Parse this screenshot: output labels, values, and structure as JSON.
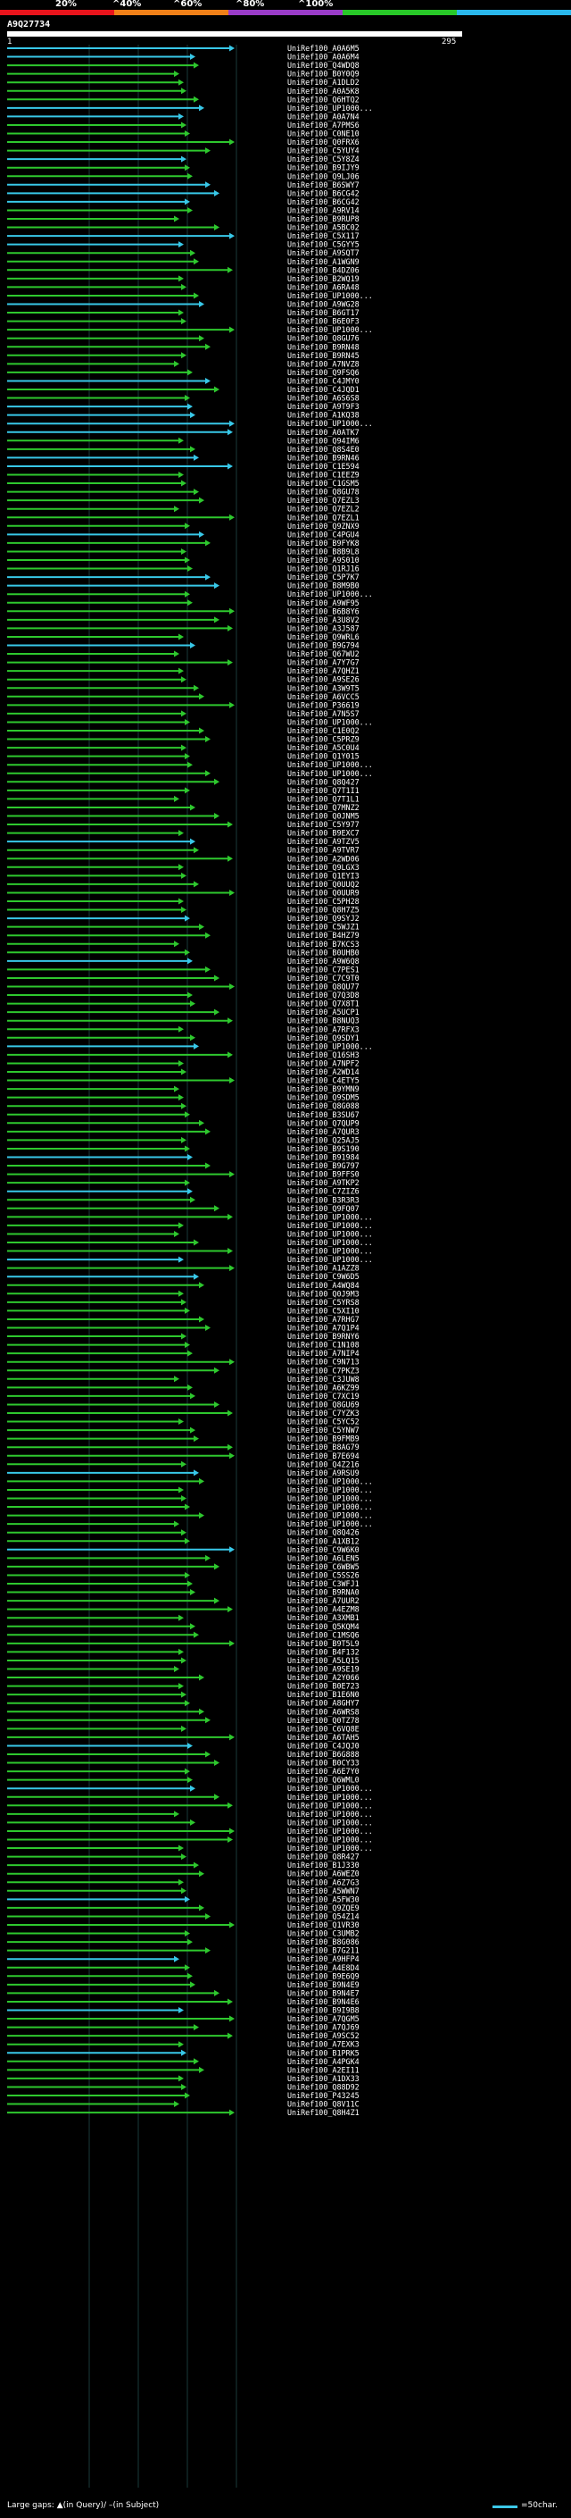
{
  "legend": {
    "labels": [
      "20%",
      "^40%",
      "^60%",
      "^80%",
      "^100%"
    ],
    "colors": [
      "#e8141c",
      "#f08018",
      "#9a3cc8",
      "#28c828",
      "#2ab8ec"
    ]
  },
  "query": {
    "id": "A9Q27734",
    "start": "1",
    "end": "295"
  },
  "hits": [
    {
      "label": "UniRef100_A0A6M5",
      "color": "#38c8e8"
    },
    {
      "label": "UniRef100_A0A6M4",
      "color": "#38c8e8"
    },
    {
      "label": "UniRef100_Q4WDQ8",
      "color": "#2ec82e"
    },
    {
      "label": "UniRef100_B0Y0Q9",
      "color": "#2ec82e"
    },
    {
      "label": "UniRef100_A1DLD2",
      "color": "#2ec82e"
    },
    {
      "label": "UniRef100_A0A5K8",
      "color": "#2ec82e"
    },
    {
      "label": "UniRef100_Q6HTQ2",
      "color": "#2ec82e"
    },
    {
      "label": "UniRef100_UP1000...",
      "color": "#38c8e8"
    },
    {
      "label": "UniRef100_A0A7N4",
      "color": "#38c8e8"
    },
    {
      "label": "UniRef100_A7PMS6",
      "color": "#2ec82e"
    },
    {
      "label": "UniRef100_C0NE10",
      "color": "#2ec82e"
    },
    {
      "label": "UniRef100_Q0FRX6",
      "color": "#2ec82e"
    },
    {
      "label": "UniRef100_C5YUY4",
      "color": "#2ec82e"
    },
    {
      "label": "UniRef100_C5Y8Z4",
      "color": "#38c8e8"
    },
    {
      "label": "UniRef100_B9IJY9",
      "color": "#2ec82e"
    },
    {
      "label": "UniRef100_Q9LJ06",
      "color": "#2ec82e"
    },
    {
      "label": "UniRef100_B6SWY7",
      "color": "#38c8e8"
    },
    {
      "label": "UniRef100_B6CG42",
      "color": "#38c8e8"
    },
    {
      "label": "UniRef100_B6CG42",
      "color": "#38c8e8"
    },
    {
      "label": "UniRef100_A9RV14",
      "color": "#2ec82e"
    },
    {
      "label": "UniRef100_B9RUP8",
      "color": "#2ec82e"
    },
    {
      "label": "UniRef100_A5BC02",
      "color": "#2ec82e"
    },
    {
      "label": "UniRef100_C5X117",
      "color": "#38c8e8"
    },
    {
      "label": "UniRef100_C5GYY5",
      "color": "#38c8e8"
    },
    {
      "label": "UniRef100_A9SQT7",
      "color": "#2ec82e"
    },
    {
      "label": "UniRef100_A1WGN9",
      "color": "#2ec82e"
    },
    {
      "label": "UniRef100_B4DZ06",
      "color": "#2ec82e"
    },
    {
      "label": "UniRef100_B2WQ19",
      "color": "#2ec82e"
    },
    {
      "label": "UniRef100_A6RA48",
      "color": "#2ec82e"
    },
    {
      "label": "UniRef100_UP1000...",
      "color": "#2ec82e"
    },
    {
      "label": "UniRef100_A9WG28",
      "color": "#38c8e8"
    },
    {
      "label": "UniRef100_B6GT17",
      "color": "#2ec82e"
    },
    {
      "label": "UniRef100_B6E0F3",
      "color": "#2ec82e"
    },
    {
      "label": "UniRef100_UP1000...",
      "color": "#2ec82e"
    },
    {
      "label": "UniRef100_Q8GU76",
      "color": "#2ec82e"
    },
    {
      "label": "UniRef100_B9RN48",
      "color": "#2ec82e"
    },
    {
      "label": "UniRef100_B9RN45",
      "color": "#2ec82e"
    },
    {
      "label": "UniRef100_A7NVZ8",
      "color": "#2ec82e"
    },
    {
      "label": "UniRef100_Q9FSQ6",
      "color": "#2ec82e"
    },
    {
      "label": "UniRef100_C4JMY0",
      "color": "#38c8e8"
    },
    {
      "label": "UniRef100_C4JQD1",
      "color": "#2ec82e"
    },
    {
      "label": "UniRef100_A6S6S8",
      "color": "#2ec82e"
    },
    {
      "label": "UniRef100_A9T9F3",
      "color": "#38c8e8"
    },
    {
      "label": "UniRef100_A1KQ38",
      "color": "#38c8e8"
    },
    {
      "label": "UniRef100_UP1000...",
      "color": "#38c8e8"
    },
    {
      "label": "UniRef100_A0ATK7",
      "color": "#38c8e8"
    },
    {
      "label": "UniRef100_Q94IM6",
      "color": "#2ec82e"
    },
    {
      "label": "UniRef100_Q8S4E0",
      "color": "#2ec82e"
    },
    {
      "label": "UniRef100_B9RN46",
      "color": "#38c8e8"
    },
    {
      "label": "UniRef100_C1E594",
      "color": "#38c8e8"
    },
    {
      "label": "UniRef100_C1EEZ9",
      "color": "#2ec82e"
    },
    {
      "label": "UniRef100_C1GSM5",
      "color": "#2ec82e"
    },
    {
      "label": "UniRef100_Q8GU78",
      "color": "#2ec82e"
    },
    {
      "label": "UniRef100_Q7EZL3",
      "color": "#2ec82e"
    },
    {
      "label": "UniRef100_Q7EZL2",
      "color": "#2ec82e"
    },
    {
      "label": "UniRef100_Q7EZL1",
      "color": "#2ec82e"
    },
    {
      "label": "UniRef100_Q9ZNX9",
      "color": "#2ec82e"
    },
    {
      "label": "UniRef100_C4PGU4",
      "color": "#38c8e8"
    },
    {
      "label": "UniRef100_B9FYK8",
      "color": "#2ec82e"
    },
    {
      "label": "UniRef100_B8B9L8",
      "color": "#2ec82e"
    },
    {
      "label": "UniRef100_A9S010",
      "color": "#2ec82e"
    },
    {
      "label": "UniRef100_Q1RJ16",
      "color": "#2ec82e"
    },
    {
      "label": "UniRef100_C5P7K7",
      "color": "#38c8e8"
    },
    {
      "label": "UniRef100_B8M9B0",
      "color": "#38c8e8"
    },
    {
      "label": "UniRef100_UP1000...",
      "color": "#2ec82e"
    },
    {
      "label": "UniRef100_A9WF95",
      "color": "#2ec82e"
    },
    {
      "label": "UniRef100_B6B8Y6",
      "color": "#2ec82e"
    },
    {
      "label": "UniRef100_A3U8V2",
      "color": "#2ec82e"
    },
    {
      "label": "UniRef100_A3J587",
      "color": "#2ec82e"
    },
    {
      "label": "UniRef100_Q9WRL6",
      "color": "#2ec82e"
    },
    {
      "label": "UniRef100_B9G794",
      "color": "#38c8e8"
    },
    {
      "label": "UniRef100_Q67WU2",
      "color": "#2ec82e"
    },
    {
      "label": "UniRef100_A7Y7G7",
      "color": "#2ec82e"
    },
    {
      "label": "UniRef100_A7QHZ1",
      "color": "#2ec82e"
    },
    {
      "label": "UniRef100_A9SE26",
      "color": "#2ec82e"
    },
    {
      "label": "UniRef100_A3W9T5",
      "color": "#2ec82e"
    },
    {
      "label": "UniRef100_A6VCC5",
      "color": "#2ec82e"
    },
    {
      "label": "UniRef100_P36619",
      "color": "#2ec82e"
    },
    {
      "label": "UniRef100_A7N5S7",
      "color": "#2ec82e"
    },
    {
      "label": "UniRef100_UP1000...",
      "color": "#2ec82e"
    },
    {
      "label": "UniRef100_C1E0Q2",
      "color": "#2ec82e"
    },
    {
      "label": "UniRef100_C5PRZ9",
      "color": "#2ec82e"
    },
    {
      "label": "UniRef100_A5C0U4",
      "color": "#2ec82e"
    },
    {
      "label": "UniRef100_Q1Y015",
      "color": "#2ec82e"
    },
    {
      "label": "UniRef100_UP1000...",
      "color": "#2ec82e"
    },
    {
      "label": "UniRef100_UP1000...",
      "color": "#2ec82e"
    },
    {
      "label": "UniRef100_Q8Q427",
      "color": "#2ec82e"
    },
    {
      "label": "UniRef100_Q7T1I1",
      "color": "#2ec82e"
    },
    {
      "label": "UniRef100_Q7T1L1",
      "color": "#2ec82e"
    },
    {
      "label": "UniRef100_Q7MNZ2",
      "color": "#2ec82e"
    },
    {
      "label": "UniRef100_Q0JNM5",
      "color": "#2ec82e"
    },
    {
      "label": "UniRef100_C5Y977",
      "color": "#2ec82e"
    },
    {
      "label": "UniRef100_B9EXC7",
      "color": "#2ec82e"
    },
    {
      "label": "UniRef100_A9TZV5",
      "color": "#38c8e8"
    },
    {
      "label": "UniRef100_A9TVR7",
      "color": "#2ec82e"
    },
    {
      "label": "UniRef100_A2WD06",
      "color": "#2ec82e"
    },
    {
      "label": "UniRef100_Q9LGX3",
      "color": "#2ec82e"
    },
    {
      "label": "UniRef100_Q1EYI3",
      "color": "#2ec82e"
    },
    {
      "label": "UniRef100_Q0UUQ2",
      "color": "#2ec82e"
    },
    {
      "label": "UniRef100_Q0UUR9",
      "color": "#2ec82e"
    },
    {
      "label": "UniRef100_C5PH28",
      "color": "#2ec82e"
    },
    {
      "label": "UniRef100_Q8H7Z5",
      "color": "#2ec82e"
    },
    {
      "label": "UniRef100_Q9SYJ2",
      "color": "#38c8e8"
    },
    {
      "label": "UniRef100_C5WJZ1",
      "color": "#2ec82e"
    },
    {
      "label": "UniRef100_B4HZ79",
      "color": "#2ec82e"
    },
    {
      "label": "UniRef100_B7KCS3",
      "color": "#2ec82e"
    },
    {
      "label": "UniRef100_B0UHB0",
      "color": "#2ec82e"
    },
    {
      "label": "UniRef100_A9W6Q8",
      "color": "#38c8e8"
    },
    {
      "label": "UniRef100_C7PES1",
      "color": "#2ec82e"
    },
    {
      "label": "UniRef100_C7C9T0",
      "color": "#2ec82e"
    },
    {
      "label": "UniRef100_Q8QU77",
      "color": "#2ec82e"
    },
    {
      "label": "UniRef100_Q7Q3D8",
      "color": "#2ec82e"
    },
    {
      "label": "UniRef100_Q7X8T1",
      "color": "#2ec82e"
    },
    {
      "label": "UniRef100_A5UCP1",
      "color": "#2ec82e"
    },
    {
      "label": "UniRef100_B8NUQ3",
      "color": "#2ec82e"
    },
    {
      "label": "UniRef100_A7RFX3",
      "color": "#2ec82e"
    },
    {
      "label": "UniRef100_Q9SDY1",
      "color": "#2ec82e"
    },
    {
      "label": "UniRef100_UP1000...",
      "color": "#38c8e8"
    },
    {
      "label": "UniRef100_Q16SH3",
      "color": "#2ec82e"
    },
    {
      "label": "UniRef100_A7NPF2",
      "color": "#2ec82e"
    },
    {
      "label": "UniRef100_A2WD14",
      "color": "#2ec82e"
    },
    {
      "label": "UniRef100_C4ETY5",
      "color": "#2ec82e"
    },
    {
      "label": "UniRef100_B9YMN9",
      "color": "#2ec82e"
    },
    {
      "label": "UniRef100_Q9SDM5",
      "color": "#2ec82e"
    },
    {
      "label": "UniRef100_Q8G088",
      "color": "#2ec82e"
    },
    {
      "label": "UniRef100_B3SU67",
      "color": "#2ec82e"
    },
    {
      "label": "UniRef100_Q7QUP9",
      "color": "#2ec82e"
    },
    {
      "label": "UniRef100_A7QUR3",
      "color": "#2ec82e"
    },
    {
      "label": "UniRef100_Q25AJ5",
      "color": "#2ec82e"
    },
    {
      "label": "UniRef100_B9S190",
      "color": "#2ec82e"
    },
    {
      "label": "UniRef100_B91984",
      "color": "#38c8e8"
    },
    {
      "label": "UniRef100_B9G797",
      "color": "#2ec82e"
    },
    {
      "label": "UniRef100_B9FFS0",
      "color": "#2ec82e"
    },
    {
      "label": "UniRef100_A9TKP2",
      "color": "#2ec82e"
    },
    {
      "label": "UniRef100_C7ZIZ6",
      "color": "#38c8e8"
    },
    {
      "label": "UniRef100_B3R3R3",
      "color": "#2ec82e"
    },
    {
      "label": "UniRef100_Q9FQ07",
      "color": "#2ec82e"
    },
    {
      "label": "UniRef100_UP1000...",
      "color": "#2ec82e"
    },
    {
      "label": "UniRef100_UP1000...",
      "color": "#2ec82e"
    },
    {
      "label": "UniRef100_UP1000...",
      "color": "#2ec82e"
    },
    {
      "label": "UniRef100_UP1000...",
      "color": "#2ec82e"
    },
    {
      "label": "UniRef100_UP1000...",
      "color": "#2ec82e"
    },
    {
      "label": "UniRef100_UP1000...",
      "color": "#38c8e8"
    },
    {
      "label": "UniRef100_A1AZZ8",
      "color": "#2ec82e"
    },
    {
      "label": "UniRef100_C9W6D5",
      "color": "#38c8e8"
    },
    {
      "label": "UniRef100_A4WQ84",
      "color": "#2ec82e"
    },
    {
      "label": "UniRef100_Q0J9M3",
      "color": "#2ec82e"
    },
    {
      "label": "UniRef100_C5YRS8",
      "color": "#2ec82e"
    },
    {
      "label": "UniRef100_C5XI10",
      "color": "#2ec82e"
    },
    {
      "label": "UniRef100_A7RHG7",
      "color": "#2ec82e"
    },
    {
      "label": "UniRef100_A7Q1P4",
      "color": "#2ec82e"
    },
    {
      "label": "UniRef100_B9RNY6",
      "color": "#2ec82e"
    },
    {
      "label": "UniRef100_C1N108",
      "color": "#2ec82e"
    },
    {
      "label": "UniRef100_A7NIP4",
      "color": "#2ec82e"
    },
    {
      "label": "UniRef100_C9N713",
      "color": "#2ec82e"
    },
    {
      "label": "UniRef100_C7PKZ3",
      "color": "#2ec82e"
    },
    {
      "label": "UniRef100_C3JUW8",
      "color": "#2ec82e"
    },
    {
      "label": "UniRef100_A6KZ99",
      "color": "#2ec82e"
    },
    {
      "label": "UniRef100_C7XC19",
      "color": "#2ec82e"
    },
    {
      "label": "UniRef100_Q8GU69",
      "color": "#2ec82e"
    },
    {
      "label": "UniRef100_C7YZK3",
      "color": "#2ec82e"
    },
    {
      "label": "UniRef100_C5YC52",
      "color": "#2ec82e"
    },
    {
      "label": "UniRef100_C5YNW7",
      "color": "#2ec82e"
    },
    {
      "label": "UniRef100_B9FMB9",
      "color": "#2ec82e"
    },
    {
      "label": "UniRef100_B8AG79",
      "color": "#2ec82e"
    },
    {
      "label": "UniRef100_B7E694",
      "color": "#2ec82e"
    },
    {
      "label": "UniRef100_Q4Z216",
      "color": "#2ec82e"
    },
    {
      "label": "UniRef100_A9RSU9",
      "color": "#38c8e8"
    },
    {
      "label": "UniRef100_UP1000...",
      "color": "#2ec82e"
    },
    {
      "label": "UniRef100_UP1000...",
      "color": "#2ec82e"
    },
    {
      "label": "UniRef100_UP1000...",
      "color": "#2ec82e"
    },
    {
      "label": "UniRef100_UP1000...",
      "color": "#2ec82e"
    },
    {
      "label": "UniRef100_UP1000...",
      "color": "#2ec82e"
    },
    {
      "label": "UniRef100_UP1000...",
      "color": "#2ec82e"
    },
    {
      "label": "UniRef100_Q8Q426",
      "color": "#2ec82e"
    },
    {
      "label": "UniRef100_A1XB12",
      "color": "#2ec82e"
    },
    {
      "label": "UniRef100_C9W6K0",
      "color": "#38c8e8"
    },
    {
      "label": "UniRef100_A6LEN5",
      "color": "#2ec82e"
    },
    {
      "label": "UniRef100_C6WBW5",
      "color": "#2ec82e"
    },
    {
      "label": "UniRef100_C5SS26",
      "color": "#2ec82e"
    },
    {
      "label": "UniRef100_C3WFJ1",
      "color": "#2ec82e"
    },
    {
      "label": "UniRef100_B9RNA0",
      "color": "#2ec82e"
    },
    {
      "label": "UniRef100_A7UUR2",
      "color": "#2ec82e"
    },
    {
      "label": "UniRef100_A4EZM8",
      "color": "#2ec82e"
    },
    {
      "label": "UniRef100_A3XMB1",
      "color": "#2ec82e"
    },
    {
      "label": "UniRef100_Q5KQM4",
      "color": "#2ec82e"
    },
    {
      "label": "UniRef100_C1MSQ6",
      "color": "#2ec82e"
    },
    {
      "label": "UniRef100_B9T5L9",
      "color": "#2ec82e"
    },
    {
      "label": "UniRef100_B4F132",
      "color": "#2ec82e"
    },
    {
      "label": "UniRef100_A5LQ15",
      "color": "#2ec82e"
    },
    {
      "label": "UniRef100_A9SE19",
      "color": "#2ec82e"
    },
    {
      "label": "UniRef100_A2Y066",
      "color": "#2ec82e"
    },
    {
      "label": "UniRef100_B0E723",
      "color": "#2ec82e"
    },
    {
      "label": "UniRef100_B1E6N0",
      "color": "#2ec82e"
    },
    {
      "label": "UniRef100_A8GHY7",
      "color": "#2ec82e"
    },
    {
      "label": "UniRef100_A6WRS8",
      "color": "#2ec82e"
    },
    {
      "label": "UniRef100_Q0TZ78",
      "color": "#2ec82e"
    },
    {
      "label": "UniRef100_C6VQ8E",
      "color": "#2ec82e"
    },
    {
      "label": "UniRef100_A6TAH5",
      "color": "#2ec82e"
    },
    {
      "label": "UniRef100_C4JQJ0",
      "color": "#38c8e8"
    },
    {
      "label": "UniRef100_B6G888",
      "color": "#2ec82e"
    },
    {
      "label": "UniRef100_B0CY33",
      "color": "#2ec82e"
    },
    {
      "label": "UniRef100_A6E7Y0",
      "color": "#2ec82e"
    },
    {
      "label": "UniRef100_Q6WML0",
      "color": "#2ec82e"
    },
    {
      "label": "UniRef100_UP1000...",
      "color": "#38c8e8"
    },
    {
      "label": "UniRef100_UP1000...",
      "color": "#2ec82e"
    },
    {
      "label": "UniRef100_UP1000...",
      "color": "#2ec82e"
    },
    {
      "label": "UniRef100_UP1000...",
      "color": "#2ec82e"
    },
    {
      "label": "UniRef100_UP1000...",
      "color": "#2ec82e"
    },
    {
      "label": "UniRef100_UP1000...",
      "color": "#2ec82e"
    },
    {
      "label": "UniRef100_UP1000...",
      "color": "#2ec82e"
    },
    {
      "label": "UniRef100_UP1000...",
      "color": "#2ec82e"
    },
    {
      "label": "UniRef100_Q8R427",
      "color": "#2ec82e"
    },
    {
      "label": "UniRef100_B1J330",
      "color": "#2ec82e"
    },
    {
      "label": "UniRef100_A6WEZ0",
      "color": "#2ec82e"
    },
    {
      "label": "UniRef100_A6Z7G3",
      "color": "#2ec82e"
    },
    {
      "label": "UniRef100_A5WWN7",
      "color": "#2ec82e"
    },
    {
      "label": "UniRef100_A5FW30",
      "color": "#38c8e8"
    },
    {
      "label": "UniRef100_Q9ZQE9",
      "color": "#2ec82e"
    },
    {
      "label": "UniRef100_Q54Z14",
      "color": "#2ec82e"
    },
    {
      "label": "UniRef100_Q1VR30",
      "color": "#2ec82e"
    },
    {
      "label": "UniRef100_C3UMB2",
      "color": "#2ec82e"
    },
    {
      "label": "UniRef100_B8G086",
      "color": "#2ec82e"
    },
    {
      "label": "UniRef100_B7G211",
      "color": "#2ec82e"
    },
    {
      "label": "UniRef100_A9HFP4",
      "color": "#38c8e8"
    },
    {
      "label": "UniRef100_A4E8D4",
      "color": "#2ec82e"
    },
    {
      "label": "UniRef100_B9E6Q9",
      "color": "#2ec82e"
    },
    {
      "label": "UniRef100_B9N4E9",
      "color": "#2ec82e"
    },
    {
      "label": "UniRef100_B9N4E7",
      "color": "#2ec82e"
    },
    {
      "label": "UniRef100_B9N4E6",
      "color": "#2ec82e"
    },
    {
      "label": "UniRef100_B9I9B8",
      "color": "#38c8e8"
    },
    {
      "label": "UniRef100_A7QGM5",
      "color": "#2ec82e"
    },
    {
      "label": "UniRef100_A7QJ69",
      "color": "#2ec82e"
    },
    {
      "label": "UniRef100_A9SC52",
      "color": "#2ec82e"
    },
    {
      "label": "UniRef100_A7EXK3",
      "color": "#2ec82e"
    },
    {
      "label": "UniRef100_B1PRK5",
      "color": "#38c8e8"
    },
    {
      "label": "UniRef100_A4PGK4",
      "color": "#2ec82e"
    },
    {
      "label": "UniRef100_A2EI11",
      "color": "#2ec82e"
    },
    {
      "label": "UniRef100_A1DX33",
      "color": "#2ec82e"
    },
    {
      "label": "UniRef100_Q88D92",
      "color": "#2ec82e"
    },
    {
      "label": "UniRef100_P43245",
      "color": "#2ec82e"
    },
    {
      "label": "UniRef100_Q8V11C",
      "color": "#2ec82e"
    },
    {
      "label": "UniRef100_Q8H4Z1",
      "color": "#2ec82e"
    }
  ],
  "footer": {
    "gaps_text": "Large gaps: ▲(in Query)/ –(in Subject)",
    "scale_text": "=50char."
  }
}
